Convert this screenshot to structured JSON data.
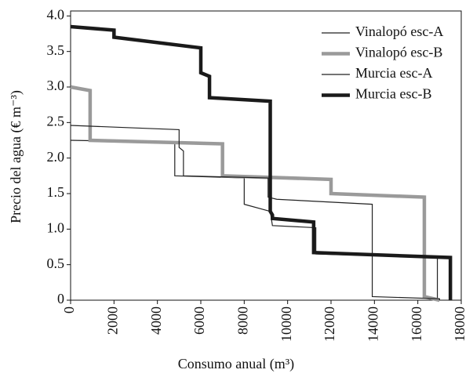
{
  "chart_data": {
    "type": "line",
    "x_label": "Consumo anual (m³)",
    "y_label": "Precio del agua (€ m⁻³)",
    "xlim": [
      0,
      18000
    ],
    "ylim": [
      0,
      4.07
    ],
    "xticks": [
      0,
      2000,
      4000,
      6000,
      8000,
      10000,
      12000,
      14000,
      16000,
      18000
    ],
    "yticks": [
      0,
      0.5,
      {
        "value": 1,
        "label": "1.0"
      },
      1.5,
      {
        "value": 2,
        "label": "2.0"
      },
      2.5,
      {
        "value": 3,
        "label": "3.0"
      },
      3.5,
      {
        "value": 4,
        "label": "4.0"
      }
    ],
    "legend": "upper right",
    "series": [
      {
        "name": "Vinalopó esc-A",
        "color": "#222222",
        "style": "thin",
        "x": [
          0,
          4800,
          4800,
          8000,
          8000,
          9200,
          9300,
          11300,
          11300,
          16900,
          16900
        ],
        "values": [
          2.25,
          2.22,
          1.75,
          1.72,
          1.35,
          1.25,
          1.05,
          1.02,
          0.65,
          0.6,
          0
        ]
      },
      {
        "name": "Vinalopó esc-B",
        "color": "#9a9a9a",
        "style": "thick",
        "x": [
          0,
          900,
          900,
          7000,
          7000,
          12000,
          12000,
          16300,
          16300,
          17000
        ],
        "values": [
          3.0,
          2.95,
          2.25,
          2.2,
          1.75,
          1.7,
          1.5,
          1.45,
          0.05,
          0
        ]
      },
      {
        "name": "Murcia esc-A",
        "color": "#222222",
        "style": "thin",
        "x": [
          0,
          5000,
          5000,
          5200,
          5200,
          9100,
          9100,
          9500,
          13900,
          13900,
          17000,
          17000
        ],
        "values": [
          2.46,
          2.4,
          2.15,
          2.1,
          1.75,
          1.72,
          1.45,
          1.42,
          1.35,
          0.05,
          0.02,
          0
        ]
      },
      {
        "name": "Murcia esc-B",
        "color": "#1a1a1a",
        "style": "thick",
        "x": [
          0,
          2000,
          2000,
          6000,
          6000,
          6400,
          6400,
          9200,
          9200,
          9300,
          9300,
          11200,
          11200,
          17500,
          17500
        ],
        "values": [
          3.85,
          3.8,
          3.7,
          3.55,
          3.2,
          3.15,
          2.85,
          2.8,
          1.25,
          1.2,
          1.15,
          1.1,
          0.67,
          0.6,
          0
        ]
      }
    ]
  }
}
